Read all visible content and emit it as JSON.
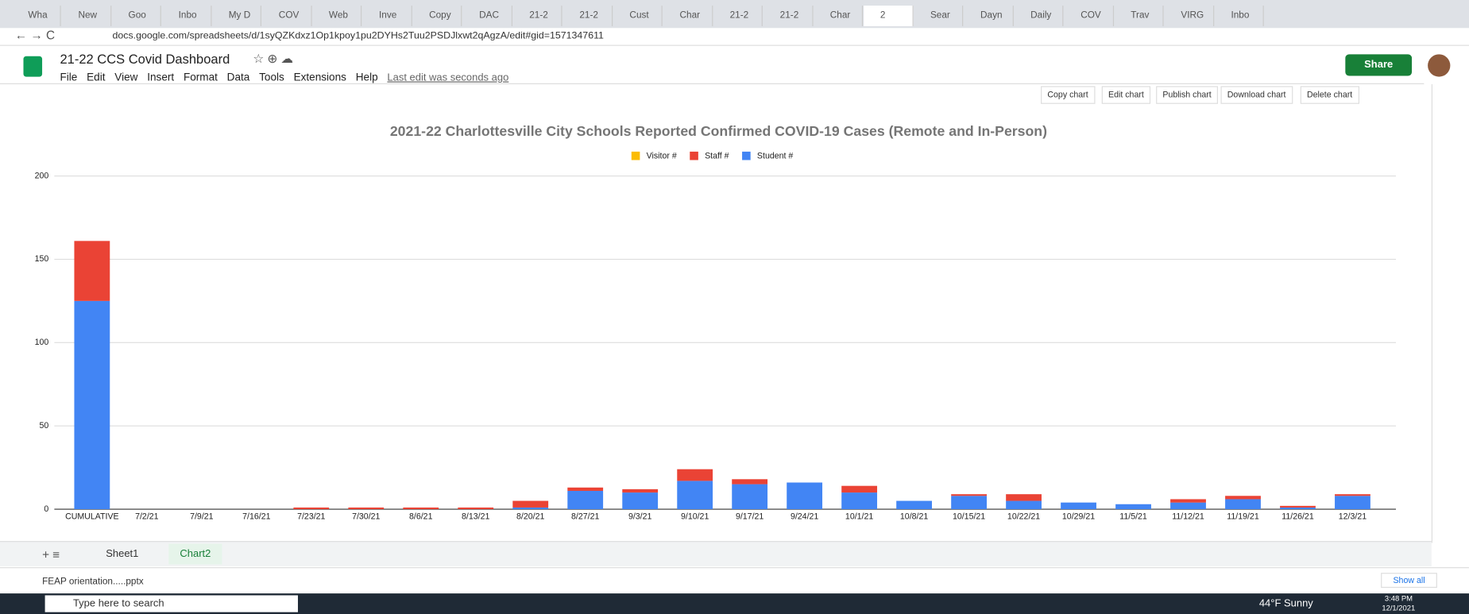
{
  "browser": {
    "tabs": [
      "Wha",
      "New",
      "Goo",
      "Inbo",
      "My D",
      "COV",
      "Web",
      "Inve",
      "Copy",
      "DAC",
      "21-2",
      "21-2",
      "Cust",
      "Char",
      "21-2",
      "21-2",
      "Char",
      "2",
      "Sear",
      "Dayn",
      "Daily",
      "COV",
      "Trav",
      "VIRG",
      "Inbo"
    ],
    "url": "docs.google.com/spreadsheets/d/1syQZKdxz1Op1kpoy1pu2DYHs2Tuu2PSDJlxwt2qAgzA/edit#gid=1571347611"
  },
  "sheets": {
    "doc_title": "21-22 CCS Covid Dashboard",
    "menu": [
      "File",
      "Edit",
      "View",
      "Insert",
      "Format",
      "Data",
      "Tools",
      "Extensions",
      "Help"
    ],
    "last_edit": "Last edit was seconds ago",
    "share": "Share",
    "chart_buttons": [
      "Copy chart",
      "Edit chart",
      "Publish chart",
      "Download chart",
      "Delete chart"
    ],
    "sheet_tabs": [
      "Sheet1",
      "Chart2"
    ]
  },
  "downloads": {
    "file": "FEAP orientation.....pptx",
    "show_all": "Show all"
  },
  "taskbar": {
    "search": "Type here to search",
    "weather": "44°F  Sunny",
    "time": "3:48 PM",
    "date": "12/1/2021"
  },
  "chart_data": {
    "type": "stacked_bar",
    "title": "2021-22 Charlottesville City Schools Reported Confirmed COVID-19 Cases (Remote and In-Person)",
    "categories": [
      "CUMULATIVE",
      "7/2/21",
      "7/9/21",
      "7/16/21",
      "7/23/21",
      "7/30/21",
      "8/6/21",
      "8/13/21",
      "8/20/21",
      "8/27/21",
      "9/3/21",
      "9/10/21",
      "9/17/21",
      "9/24/21",
      "10/1/21",
      "10/8/21",
      "10/15/21",
      "10/22/21",
      "10/29/21",
      "11/5/21",
      "11/12/21",
      "11/19/21",
      "11/26/21",
      "12/3/21"
    ],
    "series": [
      {
        "name": "Visitor #",
        "color": "#fbbc04",
        "values": [
          0,
          0,
          0,
          0,
          0,
          0,
          0,
          0,
          0,
          0,
          0,
          0,
          0,
          0,
          0,
          0,
          0,
          0,
          0,
          0,
          0,
          0,
          0,
          0
        ]
      },
      {
        "name": "Staff #",
        "color": "#ea4335",
        "values": [
          36,
          0,
          0,
          0,
          1,
          1,
          1,
          1,
          4,
          2,
          2,
          7,
          3,
          0,
          4,
          0,
          1,
          4,
          0,
          0,
          2,
          2,
          1,
          1
        ]
      },
      {
        "name": "Student #",
        "color": "#4285f4",
        "values": [
          125,
          0,
          0,
          0,
          0,
          0,
          0,
          0,
          1,
          11,
          10,
          17,
          15,
          16,
          10,
          5,
          8,
          5,
          4,
          3,
          4,
          6,
          1,
          8
        ]
      }
    ],
    "ylim": [
      0,
      200
    ],
    "yticks": [
      0,
      50,
      100,
      150,
      200
    ],
    "grid": true,
    "legend": "top"
  }
}
